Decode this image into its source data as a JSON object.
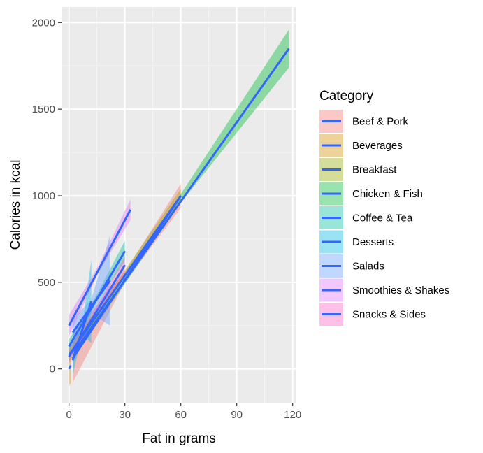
{
  "chart_data": {
    "type": "line",
    "xlabel": "Fat in grams",
    "ylabel": "Calories in kcal",
    "xlim": [
      -4,
      122
    ],
    "ylim": [
      -195,
      2090
    ],
    "x_ticks": [
      0,
      30,
      60,
      90,
      120
    ],
    "y_ticks": [
      0,
      500,
      1000,
      1500,
      2000
    ],
    "x_tick_labels": [
      "0",
      "30",
      "60",
      "90",
      "120"
    ],
    "y_tick_labels": [
      "0",
      "500",
      "1000",
      "1500",
      "2000"
    ],
    "grid": true,
    "legend": {
      "title": "Category",
      "position": "right"
    },
    "line_color": "#3366FF",
    "series": [
      {
        "name": "Beef & Pork",
        "color": "#F8766D",
        "x": [
          2,
          60
        ],
        "y": [
          60,
          1000
        ],
        "band": [
          [
            2,
            -80,
            200
          ],
          [
            30,
            500,
            560
          ],
          [
            60,
            930,
            1070
          ]
        ]
      },
      {
        "name": "Beverages",
        "color": "#D39200",
        "x": [
          0,
          1
        ],
        "y": [
          0,
          20
        ],
        "band": [
          [
            0,
            -100,
            100
          ],
          [
            1,
            -80,
            120
          ]
        ]
      },
      {
        "name": "Breakfast",
        "color": "#93AA00",
        "x": [
          0,
          60
        ],
        "y": [
          80,
          1000
        ],
        "band": [
          [
            0,
            40,
            120
          ],
          [
            30,
            530,
            570
          ],
          [
            60,
            960,
            1040
          ]
        ]
      },
      {
        "name": "Chicken & Fish",
        "color": "#00BA38",
        "x": [
          3,
          118
        ],
        "y": [
          100,
          1850
        ],
        "band": [
          [
            3,
            70,
            130
          ],
          [
            60,
            960,
            1010
          ],
          [
            118,
            1740,
            1960
          ]
        ]
      },
      {
        "name": "Coffee & Tea",
        "color": "#00C19F",
        "x": [
          0,
          30
        ],
        "y": [
          130,
          680
        ],
        "band": [
          [
            0,
            90,
            170
          ],
          [
            15,
            390,
            430
          ],
          [
            30,
            620,
            740
          ]
        ]
      },
      {
        "name": "Desserts",
        "color": "#00B9E3",
        "x": [
          2,
          12
        ],
        "y": [
          50,
          390
        ],
        "band": [
          [
            2,
            -40,
            140
          ],
          [
            7,
            200,
            240
          ],
          [
            12,
            150,
            630
          ]
        ]
      },
      {
        "name": "Salads",
        "color": "#619CFF",
        "x": [
          2,
          22
        ],
        "y": [
          210,
          510
        ],
        "band": [
          [
            2,
            130,
            290
          ],
          [
            12,
            320,
            400
          ],
          [
            22,
            250,
            770
          ]
        ]
      },
      {
        "name": "Smoothies & Shakes",
        "color": "#DB72FB",
        "x": [
          0,
          33
        ],
        "y": [
          250,
          920
        ],
        "band": [
          [
            0,
            190,
            310
          ],
          [
            16,
            560,
            600
          ],
          [
            33,
            860,
            980
          ]
        ]
      },
      {
        "name": "Snacks & Sides",
        "color": "#FF61C3",
        "x": [
          0,
          30
        ],
        "y": [
          70,
          600
        ],
        "band": [
          [
            0,
            30,
            110
          ],
          [
            15,
            320,
            360
          ],
          [
            30,
            550,
            650
          ]
        ]
      }
    ]
  }
}
